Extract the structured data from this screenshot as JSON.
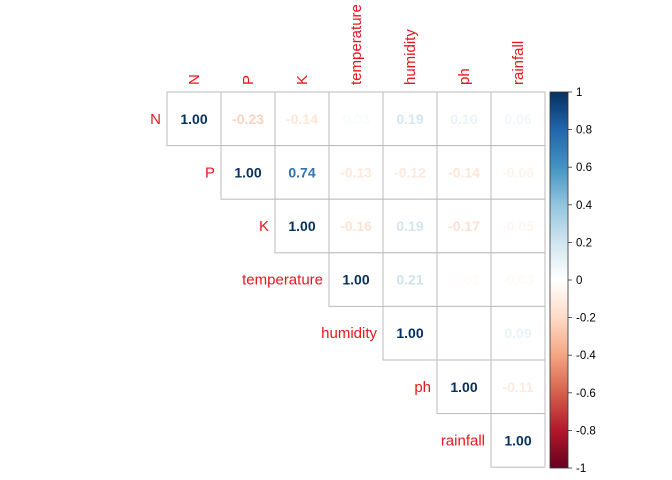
{
  "chart_data": {
    "type": "heatmap",
    "title": "",
    "variables": [
      "N",
      "P",
      "K",
      "temperature",
      "humidity",
      "ph",
      "rainfall"
    ],
    "matrix": [
      [
        1.0,
        -0.23,
        -0.14,
        0.03,
        0.19,
        0.1,
        0.06
      ],
      [
        null,
        1.0,
        0.74,
        -0.13,
        -0.12,
        -0.14,
        -0.06
      ],
      [
        null,
        null,
        1.0,
        -0.16,
        0.19,
        -0.17,
        -0.05
      ],
      [
        null,
        null,
        null,
        1.0,
        0.21,
        -0.02,
        -0.03
      ],
      [
        null,
        null,
        null,
        null,
        1.0,
        null,
        0.09
      ],
      [
        null,
        null,
        null,
        null,
        null,
        1.0,
        -0.11
      ],
      [
        null,
        null,
        null,
        null,
        null,
        null,
        1.0
      ]
    ],
    "matrix_labels": [
      [
        "1.00",
        "-0.23",
        "-0.14",
        "0.03",
        "0.19",
        "0.10",
        "0.06"
      ],
      [
        null,
        "1.00",
        "0.74",
        "-0.13",
        "-0.12",
        "-0.14",
        "-0.06"
      ],
      [
        null,
        null,
        "1.00",
        "-0.16",
        "0.19",
        "-0.17",
        "-0.05"
      ],
      [
        null,
        null,
        null,
        "1.00",
        "0.21",
        "-0.02",
        "-0.03"
      ],
      [
        null,
        null,
        null,
        null,
        "1.00",
        null,
        "0.09"
      ],
      [
        null,
        null,
        null,
        null,
        null,
        "1.00",
        "-0.11"
      ],
      [
        null,
        null,
        null,
        null,
        null,
        null,
        "1.00"
      ]
    ],
    "layout": "upper-triangle",
    "colorbar": {
      "range": [
        -1,
        1
      ],
      "ticks": [
        1,
        0.8,
        0.6,
        0.4,
        0.2,
        0,
        -0.2,
        -0.4,
        -0.6,
        -0.8,
        -1
      ],
      "tick_labels": [
        "1",
        "0.8",
        "0.6",
        "0.4",
        "0.2",
        "0",
        "-0.2",
        "-0.4",
        "-0.6",
        "-0.8",
        "-1"
      ],
      "placement": "right"
    },
    "colors": {
      "negative_end": "#67001f",
      "neutral": "#ffffff",
      "positive_end": "#053061",
      "label": "#e8161b",
      "grid": "#bbbbbb"
    }
  }
}
